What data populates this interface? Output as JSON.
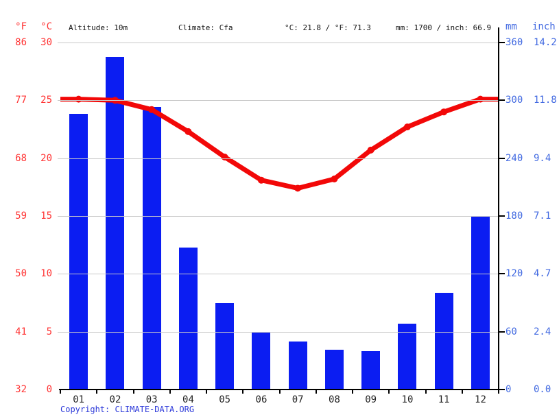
{
  "header": {
    "f_label": "°F",
    "c_label": "°C",
    "altitude": "Altitude: 10m",
    "climate": "Climate: Cfa",
    "avg_temp": "°C: 21.8 / °F: 71.3",
    "precip_total": "mm: 1700 / inch: 66.9",
    "mm_label": "mm",
    "inch_label": "inch"
  },
  "footer": {
    "copyright_label": "Copyright:",
    "copyright_link": "CLIMATE-DATA.ORG"
  },
  "colors": {
    "bar_blue": "#0b1df2",
    "line_red": "#f20808",
    "label_red": "#ff3333",
    "label_blue": "#4169e1",
    "copyright_blue": "#2b38d9",
    "grid_gray": "#c9c9c9",
    "axis_black": "#000000",
    "month_text": "#222222"
  },
  "chart_data": {
    "type": "combo",
    "subtypes": [
      "bar",
      "line"
    ],
    "categories": [
      "01",
      "02",
      "03",
      "04",
      "05",
      "06",
      "07",
      "08",
      "09",
      "10",
      "11",
      "12"
    ],
    "series": [
      {
        "name": "Precipitation",
        "type": "bar",
        "unit": "mm",
        "values": [
          286,
          345,
          293,
          147,
          90,
          60,
          50,
          41,
          40,
          68,
          100,
          180
        ]
      },
      {
        "name": "Temperature",
        "type": "line",
        "unit": "°C",
        "values": [
          25.1,
          25.0,
          24.2,
          22.3,
          20.1,
          18.1,
          17.4,
          18.2,
          20.7,
          22.7,
          24.0,
          25.1
        ]
      }
    ],
    "left_axis": {
      "f_ticks": [
        86,
        77,
        68,
        59,
        50,
        41,
        32
      ],
      "c_ticks": [
        30,
        25,
        20,
        15,
        10,
        5,
        0
      ],
      "c_range": [
        0,
        30
      ]
    },
    "right_axis": {
      "mm_ticks": [
        360,
        300,
        240,
        180,
        120,
        60,
        0
      ],
      "inch_ticks": [
        "14.2",
        "11.8",
        "9.4",
        "7.1",
        "4.7",
        "2.4",
        "0.0"
      ],
      "mm_range": [
        0,
        360
      ]
    },
    "grid": true,
    "legend": false
  }
}
